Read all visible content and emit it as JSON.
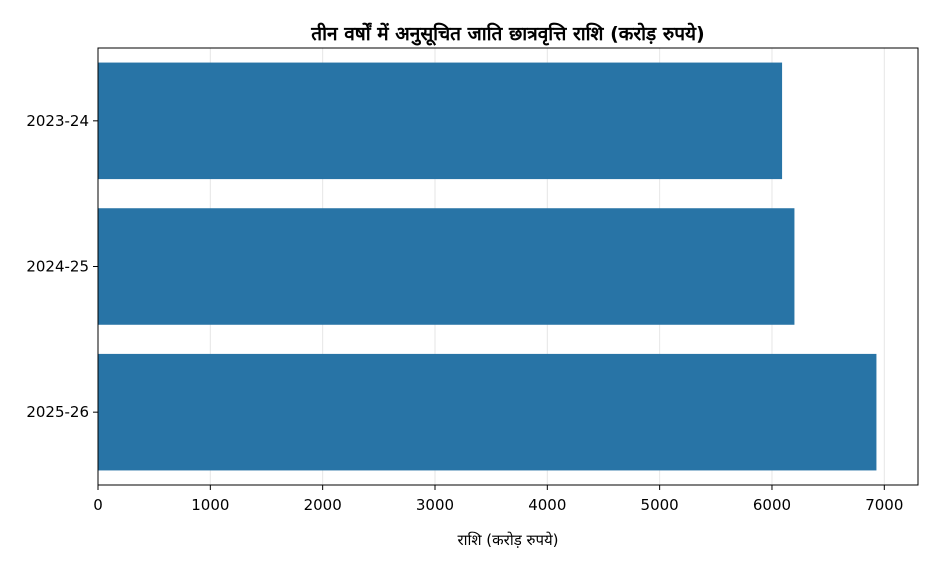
{
  "chart_data": {
    "type": "bar",
    "orientation": "horizontal",
    "title": "तीन वर्षों में अनुसूचित जाति छात्रवृत्ति राशि (करोड़ रुपये)",
    "xlabel": "राशि (करोड़ रुपये)",
    "ylabel": "",
    "categories": [
      "2023-24",
      "2024-25",
      "2025-26"
    ],
    "values": [
      6090,
      6200,
      6930
    ],
    "xlim": [
      0,
      7300
    ],
    "xticks": [
      0,
      1000,
      2000,
      3000,
      4000,
      5000,
      6000,
      7000
    ],
    "grid": "x",
    "bar_color": "#2874a6",
    "grid_color": "#e6e6e6"
  }
}
